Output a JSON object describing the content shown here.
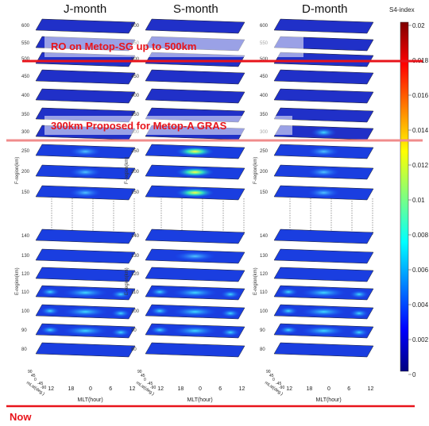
{
  "chart_data": {
    "type": "heatmap",
    "panels": [
      "J-month",
      "S-month",
      "D-month"
    ],
    "f_region_label": "F-region(km)",
    "e_region_label": "E-region(km)",
    "upper_altitudes_km": [
      600,
      550,
      500,
      450,
      400,
      350,
      300
    ],
    "f_region_altitudes_km": [
      250,
      200,
      150
    ],
    "e_region_altitudes_km": [
      140,
      130,
      120,
      110,
      100,
      90,
      80
    ],
    "xlabel": "MLT(hour)",
    "x_ticks": [
      "12",
      "18",
      "0",
      "6",
      "12"
    ],
    "ylabel": "mLat(deg.)",
    "y_ticks": [
      "90",
      "45",
      "0",
      "-45",
      "-90"
    ],
    "colorbar": {
      "title": "S4-index",
      "min": 0,
      "max": 0.02,
      "ticks": [
        "0.02",
        "0.018",
        "0.016",
        "0.014",
        "0.012",
        "0.01",
        "0.008",
        "0.006",
        "0.004",
        "0.002",
        "0"
      ]
    },
    "colors": {
      "annotation": "#e8141b",
      "line_top": "#e8141b",
      "line_mid": "#f08c8c",
      "line_now": "#e8141b"
    }
  },
  "annotations": {
    "ro_metop_sg": "RO on Metop-SG up to 500km",
    "metop_a_gras": "300km Proposed for Metop-A GRAS",
    "now": "Now"
  }
}
